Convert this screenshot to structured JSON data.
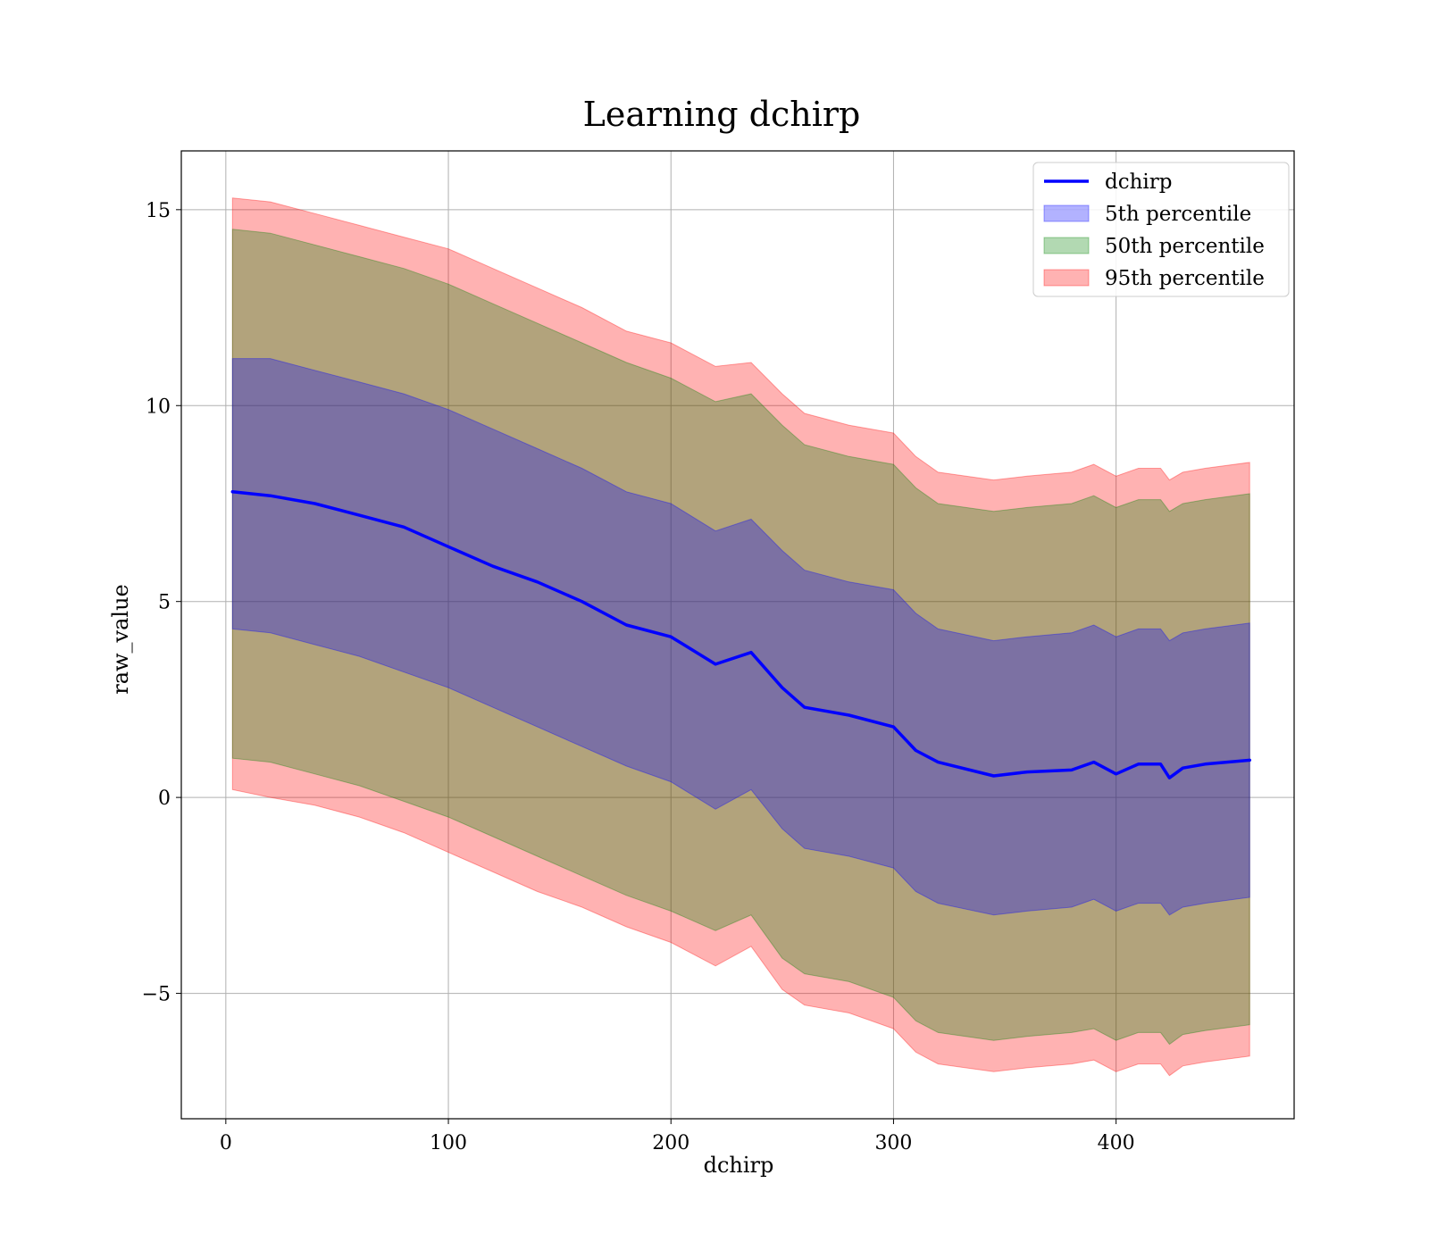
{
  "chart_data": {
    "type": "area",
    "title": "Learning dchirp",
    "xlabel": "dchirp",
    "ylabel": "raw_value",
    "xlim": [
      -20,
      480
    ],
    "ylim": [
      -8.2,
      16.5
    ],
    "x_ticks": [
      {
        "value": 0,
        "label": "0"
      },
      {
        "value": 100,
        "label": "100"
      },
      {
        "value": 200,
        "label": "200"
      },
      {
        "value": 300,
        "label": "300"
      },
      {
        "value": 400,
        "label": "400"
      }
    ],
    "y_ticks": [
      {
        "value": -5,
        "label": "−5"
      },
      {
        "value": 0,
        "label": "0"
      },
      {
        "value": 5,
        "label": "5"
      },
      {
        "value": 10,
        "label": "10"
      },
      {
        "value": 15,
        "label": "15"
      }
    ],
    "grid": true,
    "legend_position": "top-right",
    "legend": [
      {
        "label": "dchirp",
        "kind": "line",
        "color": "#0000ff"
      },
      {
        "label": "5th percentile",
        "kind": "band",
        "color": "#0000ff"
      },
      {
        "label": "50th percentile",
        "kind": "band",
        "color": "#008000"
      },
      {
        "label": "95th percentile",
        "kind": "band",
        "color": "#ff0000"
      }
    ],
    "x": [
      3,
      20,
      40,
      60,
      80,
      100,
      120,
      140,
      160,
      180,
      200,
      220,
      236,
      250,
      260,
      280,
      300,
      310,
      320,
      345,
      360,
      380,
      390,
      400,
      410,
      420,
      424,
      430,
      440,
      460
    ],
    "series": [
      {
        "name": "dchirp",
        "role": "line",
        "color": "#0000ff",
        "values": [
          7.8,
          7.7,
          7.5,
          7.2,
          6.9,
          6.4,
          5.9,
          5.5,
          5.0,
          4.4,
          4.1,
          3.4,
          3.7,
          2.8,
          2.3,
          2.1,
          1.8,
          1.2,
          0.9,
          0.55,
          0.65,
          0.7,
          0.9,
          0.6,
          0.85,
          0.85,
          0.5,
          0.75,
          0.85,
          0.95
        ]
      },
      {
        "name": "95th percentile",
        "role": "band",
        "color": "#ff0000",
        "upper": [
          15.3,
          15.2,
          14.9,
          14.6,
          14.3,
          14.0,
          13.5,
          13.0,
          12.5,
          11.9,
          11.6,
          11.0,
          11.1,
          10.3,
          9.8,
          9.5,
          9.3,
          8.7,
          8.3,
          8.1,
          8.2,
          8.3,
          8.5,
          8.2,
          8.4,
          8.4,
          8.1,
          8.3,
          8.4,
          8.55
        ],
        "lower": [
          0.2,
          0.0,
          -0.2,
          -0.5,
          -0.9,
          -1.4,
          -1.9,
          -2.4,
          -2.8,
          -3.3,
          -3.7,
          -4.3,
          -3.8,
          -4.9,
          -5.3,
          -5.5,
          -5.9,
          -6.5,
          -6.8,
          -7.0,
          -6.9,
          -6.8,
          -6.7,
          -7.0,
          -6.8,
          -6.8,
          -7.1,
          -6.85,
          -6.75,
          -6.6
        ]
      },
      {
        "name": "50th percentile",
        "role": "band",
        "color": "#008000",
        "upper": [
          14.5,
          14.4,
          14.1,
          13.8,
          13.5,
          13.1,
          12.6,
          12.1,
          11.6,
          11.1,
          10.7,
          10.1,
          10.3,
          9.5,
          9.0,
          8.7,
          8.5,
          7.9,
          7.5,
          7.3,
          7.4,
          7.5,
          7.7,
          7.4,
          7.6,
          7.6,
          7.3,
          7.5,
          7.6,
          7.75
        ],
        "lower": [
          1.0,
          0.9,
          0.6,
          0.3,
          -0.1,
          -0.5,
          -1.0,
          -1.5,
          -2.0,
          -2.5,
          -2.9,
          -3.4,
          -3.0,
          -4.1,
          -4.5,
          -4.7,
          -5.1,
          -5.7,
          -6.0,
          -6.2,
          -6.1,
          -6.0,
          -5.9,
          -6.2,
          -6.0,
          -6.0,
          -6.3,
          -6.05,
          -5.95,
          -5.8
        ]
      },
      {
        "name": "5th percentile",
        "role": "band",
        "color": "#0000ff",
        "upper": [
          11.2,
          11.2,
          10.9,
          10.6,
          10.3,
          9.9,
          9.4,
          8.9,
          8.4,
          7.8,
          7.5,
          6.8,
          7.1,
          6.3,
          5.8,
          5.5,
          5.3,
          4.7,
          4.3,
          4.0,
          4.1,
          4.2,
          4.4,
          4.1,
          4.3,
          4.3,
          4.0,
          4.2,
          4.3,
          4.45
        ],
        "lower": [
          4.3,
          4.2,
          3.9,
          3.6,
          3.2,
          2.8,
          2.3,
          1.8,
          1.3,
          0.8,
          0.4,
          -0.3,
          0.2,
          -0.8,
          -1.3,
          -1.5,
          -1.8,
          -2.4,
          -2.7,
          -3.0,
          -2.9,
          -2.8,
          -2.6,
          -2.9,
          -2.7,
          -2.7,
          -3.0,
          -2.8,
          -2.7,
          -2.55
        ]
      }
    ]
  }
}
